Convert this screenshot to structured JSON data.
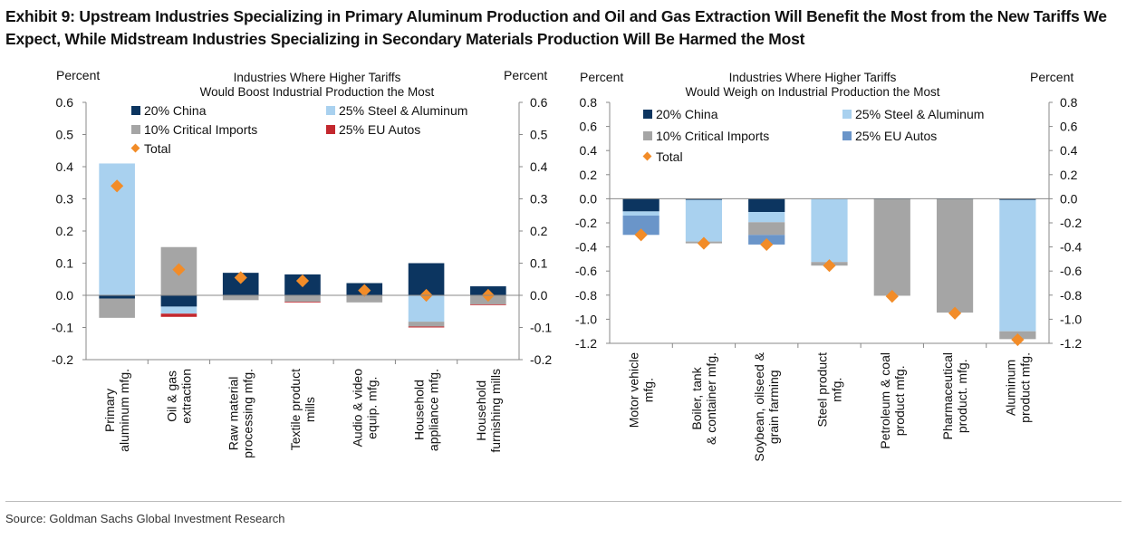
{
  "title": "Exhibit 9: Upstream Industries Specializing in Primary Aluminum Production and Oil and Gas Extraction Will Benefit the Most from the New Tariffs We Expect, While Midstream Industries Specializing in Secondary Materials Production Will Be Harmed the Most",
  "source": "Source: Goldman Sachs Global Investment Research",
  "colors": {
    "china": "#0c3560",
    "steel": "#a9d1ef",
    "critical": "#a5a5a5",
    "eu_left": "#c3282e",
    "eu_right": "#6a95c9",
    "total": "#f28c28"
  },
  "chart_data": [
    {
      "type": "bar",
      "stacked": true,
      "title": [
        "Industries Where Higher Tariffs",
        "Would Boost Industrial Production the Most"
      ],
      "ylabel_left": "Percent",
      "ylabel_right": "Percent",
      "ylim": [
        -0.2,
        0.6
      ],
      "yticks": [
        "0.6",
        "0.5",
        "0.4",
        "0.3",
        "0.2",
        "0.1",
        "0.0",
        "-0.1",
        "-0.2"
      ],
      "legend": [
        "20% China",
        "25% Steel & Aluminum",
        "10% Critical Imports",
        "25% EU Autos",
        "Total"
      ],
      "categories": [
        [
          "Primary",
          "aluminum mfg."
        ],
        [
          "Oil & gas",
          "extraction"
        ],
        [
          "Raw material",
          "processing mfg."
        ],
        [
          "Textile product",
          "mills"
        ],
        [
          "Audio & video",
          "equip. mfg."
        ],
        [
          "Household",
          "appliance mfg."
        ],
        [
          "Household",
          "furnishing mills"
        ]
      ],
      "series": [
        {
          "name": "20% China",
          "values": [
            -0.01,
            -0.035,
            0.07,
            0.065,
            0.038,
            0.1,
            0.028
          ]
        },
        {
          "name": "25% Steel & Aluminum",
          "values": [
            0.41,
            -0.022,
            0,
            0,
            0,
            -0.082,
            0
          ]
        },
        {
          "name": "10% Critical Imports",
          "values": [
            -0.06,
            0.15,
            -0.015,
            -0.02,
            -0.022,
            -0.015,
            -0.028
          ]
        },
        {
          "name": "25% EU Autos",
          "values": [
            0,
            -0.01,
            0,
            -0.002,
            0,
            -0.003,
            -0.002
          ]
        }
      ],
      "total": [
        0.34,
        0.08,
        0.055,
        0.045,
        0.015,
        0.0,
        0.0
      ],
      "legend_placement": "top-left"
    },
    {
      "type": "bar",
      "stacked": true,
      "title": [
        "Industries Where Higher Tariffs",
        "Would Weigh on Industrial Production the Most"
      ],
      "ylabel_left": "Percent",
      "ylabel_right": "Percent",
      "ylim": [
        -1.2,
        0.8
      ],
      "yticks": [
        "0.8",
        "0.6",
        "0.4",
        "0.2",
        "0.0",
        "-0.2",
        "-0.4",
        "-0.6",
        "-0.8",
        "-1.0",
        "-1.2"
      ],
      "legend": [
        "20% China",
        "25% Steel & Aluminum",
        "10% Critical Imports",
        "25% EU Autos",
        "Total"
      ],
      "categories": [
        [
          "Motor vehicle",
          "mfg."
        ],
        [
          "Boiler, tank",
          "& container mfg."
        ],
        [
          "Soybean, oilseed &",
          "grain farming"
        ],
        [
          "Steel product",
          "mfg."
        ],
        [
          "Petroleum & coal",
          "product mfg."
        ],
        [
          "Pharmaceutical",
          "product. mfg."
        ],
        [
          "Aluminum",
          "product mfg."
        ]
      ],
      "series": [
        {
          "name": "20% China",
          "values": [
            -0.105,
            -0.01,
            -0.11,
            0,
            -0.005,
            -0.005,
            -0.01
          ]
        },
        {
          "name": "25% Steel & Aluminum",
          "values": [
            -0.035,
            -0.345,
            -0.085,
            -0.525,
            0,
            0,
            -1.09
          ]
        },
        {
          "name": "10% Critical Imports",
          "values": [
            0,
            -0.015,
            -0.105,
            -0.03,
            -0.8,
            -0.94,
            -0.065
          ]
        },
        {
          "name": "25% EU Autos",
          "values": [
            -0.16,
            0,
            -0.08,
            0,
            0,
            0,
            0
          ]
        }
      ],
      "total": [
        -0.3,
        -0.37,
        -0.38,
        -0.555,
        -0.81,
        -0.95,
        -1.17
      ],
      "legend_placement": "top"
    }
  ]
}
